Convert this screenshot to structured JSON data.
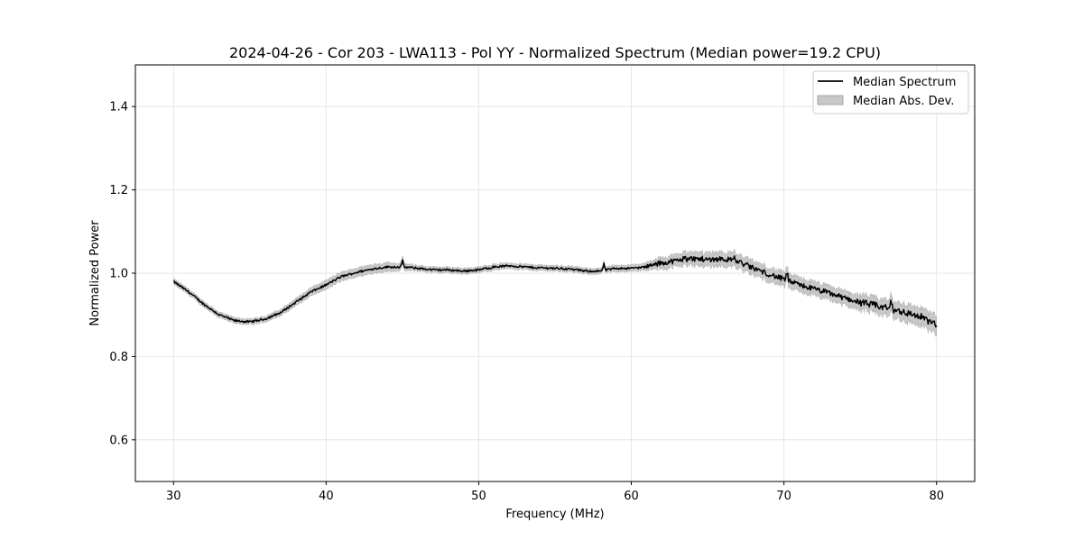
{
  "chart_data": {
    "type": "area",
    "title": "2024-04-26 - Cor 203 - LWA113 - Pol YY - Normalized Spectrum (Median power=19.2 CPU)",
    "xlabel": "Frequency (MHz)",
    "ylabel": "Normalized Power",
    "xlim": [
      27.5,
      82.5
    ],
    "ylim": [
      0.5,
      1.5
    ],
    "xticks": [
      30,
      40,
      50,
      60,
      70,
      80
    ],
    "yticks": [
      0.6,
      0.8,
      1.0,
      1.2,
      1.4
    ],
    "grid": true,
    "legend_position": "top-right",
    "series": [
      {
        "name": "Median Spectrum",
        "kind": "line",
        "color": "#000000",
        "x": [
          30,
          31,
          32,
          33,
          34,
          35,
          36,
          37,
          38,
          39,
          40,
          41,
          42,
          43,
          44,
          45,
          46,
          47,
          48,
          49,
          50,
          51,
          52,
          53,
          54,
          55,
          56,
          57,
          58,
          59,
          60,
          61,
          62,
          63,
          64,
          65,
          66,
          67,
          68,
          69,
          70,
          71,
          72,
          73,
          74,
          75,
          76,
          77,
          78,
          79,
          80
        ],
        "y": [
          0.98,
          0.955,
          0.925,
          0.9,
          0.886,
          0.883,
          0.89,
          0.905,
          0.93,
          0.955,
          0.972,
          0.992,
          1.002,
          1.01,
          1.015,
          1.015,
          1.012,
          1.008,
          1.008,
          1.005,
          1.008,
          1.015,
          1.018,
          1.015,
          1.013,
          1.012,
          1.01,
          1.005,
          1.005,
          1.012,
          1.012,
          1.015,
          1.025,
          1.03,
          1.035,
          1.033,
          1.035,
          1.028,
          1.012,
          0.998,
          0.985,
          0.972,
          0.962,
          0.952,
          0.94,
          0.93,
          0.922,
          0.915,
          0.905,
          0.895,
          0.875
        ]
      },
      {
        "name": "Median Abs. Dev.",
        "kind": "band",
        "color": "#c8c8c8",
        "half_width": [
          0.006,
          0.006,
          0.006,
          0.006,
          0.006,
          0.006,
          0.006,
          0.007,
          0.008,
          0.009,
          0.01,
          0.01,
          0.01,
          0.01,
          0.01,
          0.008,
          0.006,
          0.006,
          0.006,
          0.006,
          0.006,
          0.006,
          0.006,
          0.006,
          0.006,
          0.006,
          0.006,
          0.006,
          0.006,
          0.007,
          0.007,
          0.008,
          0.012,
          0.014,
          0.015,
          0.016,
          0.016,
          0.016,
          0.016,
          0.016,
          0.016,
          0.016,
          0.016,
          0.016,
          0.016,
          0.017,
          0.018,
          0.019,
          0.02,
          0.021,
          0.022
        ]
      }
    ],
    "spikes": [
      {
        "x": 45.0,
        "y": 1.03
      },
      {
        "x": 58.2,
        "y": 1.022
      },
      {
        "x": 63.5,
        "y": 1.045
      },
      {
        "x": 66.7,
        "y": 1.04
      },
      {
        "x": 70.2,
        "y": 1.002
      },
      {
        "x": 77.0,
        "y": 0.93
      }
    ],
    "legend": [
      "Median Spectrum",
      "Median Abs. Dev."
    ]
  }
}
